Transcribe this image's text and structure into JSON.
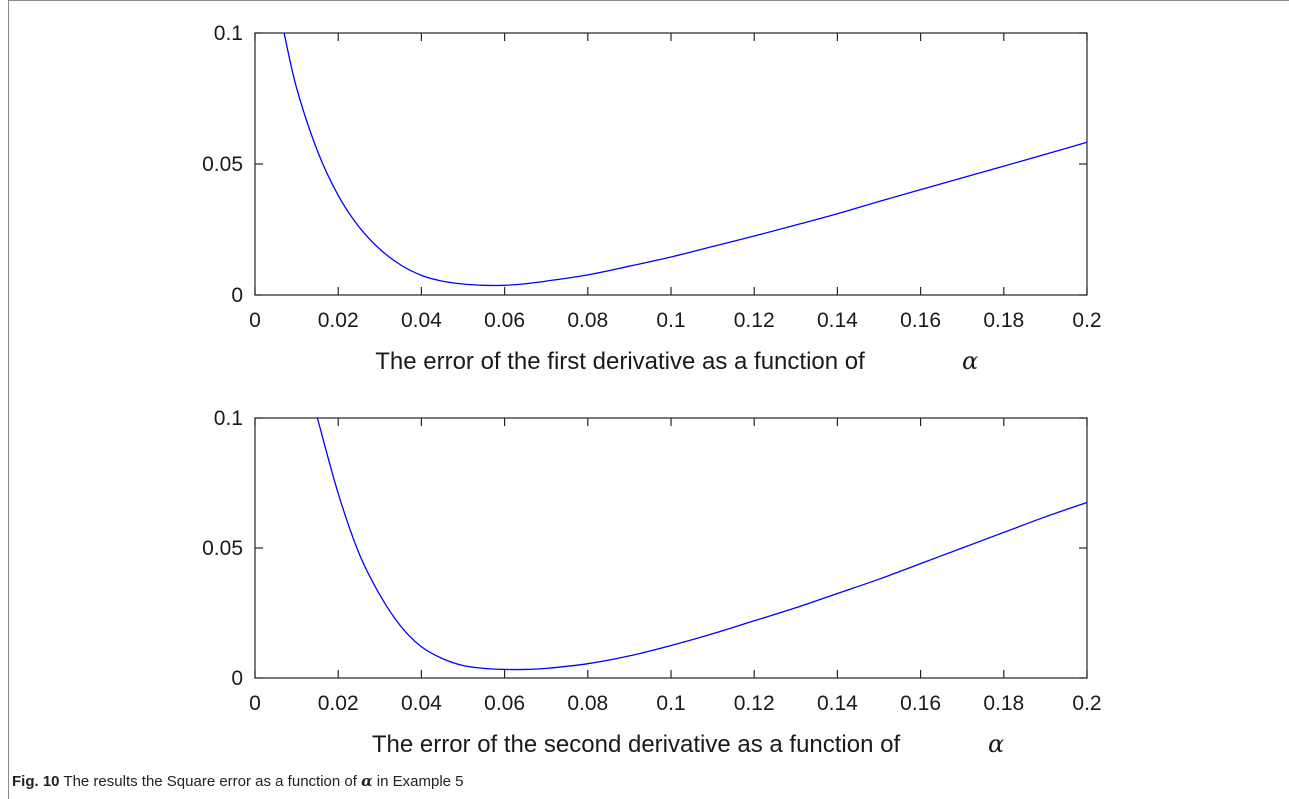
{
  "chart_data": [
    {
      "type": "line",
      "xlabel_text": "The error of the first derivative as a function of",
      "xlabel_symbol": "α",
      "xlim": [
        0,
        0.2
      ],
      "ylim": [
        0,
        0.1
      ],
      "x_ticks": [
        "0",
        "0.02",
        "0.04",
        "0.06",
        "0.08",
        "0.1",
        "0.12",
        "0.14",
        "0.16",
        "0.18",
        "0.2"
      ],
      "y_ticks": [
        "0",
        "0.05",
        "0.1"
      ],
      "series": [
        {
          "color": "#0000ff",
          "x": [
            0.007,
            0.01,
            0.015,
            0.02,
            0.025,
            0.03,
            0.035,
            0.04,
            0.045,
            0.05,
            0.055,
            0.06,
            0.065,
            0.07,
            0.08,
            0.09,
            0.1,
            0.11,
            0.12,
            0.13,
            0.14,
            0.15,
            0.16,
            0.17,
            0.18,
            0.19,
            0.2
          ],
          "y": [
            0.1,
            0.079,
            0.055,
            0.038,
            0.026,
            0.0175,
            0.0115,
            0.0075,
            0.0053,
            0.0042,
            0.0037,
            0.0037,
            0.0043,
            0.0053,
            0.0077,
            0.011,
            0.0145,
            0.0185,
            0.0225,
            0.0267,
            0.031,
            0.0357,
            0.0402,
            0.0447,
            0.0492,
            0.0537,
            0.0583
          ]
        }
      ]
    },
    {
      "type": "line",
      "xlabel_text": "The error of the second derivative as a function of",
      "xlabel_symbol": "α",
      "xlim": [
        0,
        0.2
      ],
      "ylim": [
        0,
        0.1
      ],
      "x_ticks": [
        "0",
        "0.02",
        "0.04",
        "0.06",
        "0.08",
        "0.1",
        "0.12",
        "0.14",
        "0.16",
        "0.18",
        "0.2"
      ],
      "y_ticks": [
        "0",
        "0.05",
        "0.1"
      ],
      "series": [
        {
          "color": "#0000ff",
          "x": [
            0.015,
            0.02,
            0.025,
            0.03,
            0.035,
            0.04,
            0.045,
            0.05,
            0.055,
            0.06,
            0.065,
            0.07,
            0.08,
            0.09,
            0.1,
            0.11,
            0.12,
            0.13,
            0.14,
            0.15,
            0.16,
            0.17,
            0.18,
            0.19,
            0.2
          ],
          "y": [
            0.1,
            0.071,
            0.048,
            0.032,
            0.02,
            0.012,
            0.0075,
            0.0048,
            0.0037,
            0.0033,
            0.0033,
            0.0037,
            0.0055,
            0.0085,
            0.0125,
            0.017,
            0.022,
            0.027,
            0.0325,
            0.038,
            0.044,
            0.05,
            0.056,
            0.062,
            0.0675
          ]
        }
      ]
    }
  ],
  "caption": {
    "fig_label": "Fig. 10",
    "text_before": " The results the Square error as a function of ",
    "symbol": "α",
    "text_after": " in Example 5"
  }
}
